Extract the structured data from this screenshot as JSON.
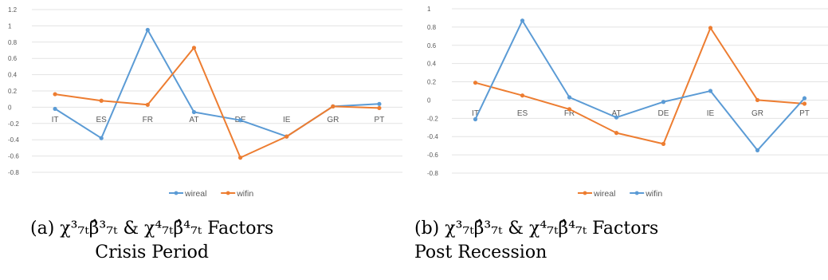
{
  "chart_data": [
    {
      "type": "line",
      "categories": [
        "IT",
        "ES",
        "FR",
        "AT",
        "DE",
        "IE",
        "GR",
        "PT"
      ],
      "ylim": [
        -0.8,
        1.2
      ],
      "yticks": [
        "1.2",
        "1",
        "0.8",
        "0.6",
        "0.4",
        "0.2",
        "0",
        "-0.2",
        "-0.4",
        "-0.6",
        "-0.8"
      ],
      "grid": true,
      "legend_position": "bottom",
      "series": [
        {
          "name": "wireal",
          "color": "#5b9bd5",
          "values": [
            -0.02,
            -0.38,
            0.95,
            -0.06,
            -0.16,
            -0.36,
            0.01,
            0.04
          ]
        },
        {
          "name": "wifin",
          "color": "#ed7d31",
          "values": [
            0.16,
            0.08,
            0.03,
            0.73,
            -0.62,
            -0.36,
            0.01,
            -0.01
          ]
        }
      ],
      "legend_order": [
        "wireal",
        "wifin"
      ]
    },
    {
      "type": "line",
      "categories": [
        "IT",
        "ES",
        "FR",
        "AT",
        "DE",
        "IE",
        "GR",
        "PT"
      ],
      "ylim": [
        -0.8,
        1.0
      ],
      "yticks": [
        "1",
        "0.8",
        "0.6",
        "0.4",
        "0.2",
        "0",
        "-0.2",
        "-0.4",
        "-0.6",
        "-0.8"
      ],
      "grid": true,
      "legend_position": "bottom",
      "series": [
        {
          "name": "wireal",
          "color": "#ed7d31",
          "values": [
            0.19,
            0.05,
            -0.1,
            -0.36,
            -0.48,
            0.79,
            0.0,
            -0.04
          ]
        },
        {
          "name": "wifin",
          "color": "#5b9bd5",
          "values": [
            -0.21,
            0.87,
            0.03,
            -0.19,
            -0.02,
            0.1,
            -0.55,
            0.02
          ]
        }
      ],
      "legend_order": [
        "wireal",
        "wifin"
      ]
    }
  ],
  "captions": {
    "a": {
      "line1": "(a) χ³₇ₜβ̂³₇ₜ & χ⁴₇ₜβ̂⁴₇ₜ Factors",
      "line2": "Crisis Period"
    },
    "b": {
      "line1": "(b) χ³₇ₜβ̂³₇ₜ & χ⁴₇ₜβ̂⁴₇ₜ Factors",
      "line2": "Post Recession"
    }
  }
}
